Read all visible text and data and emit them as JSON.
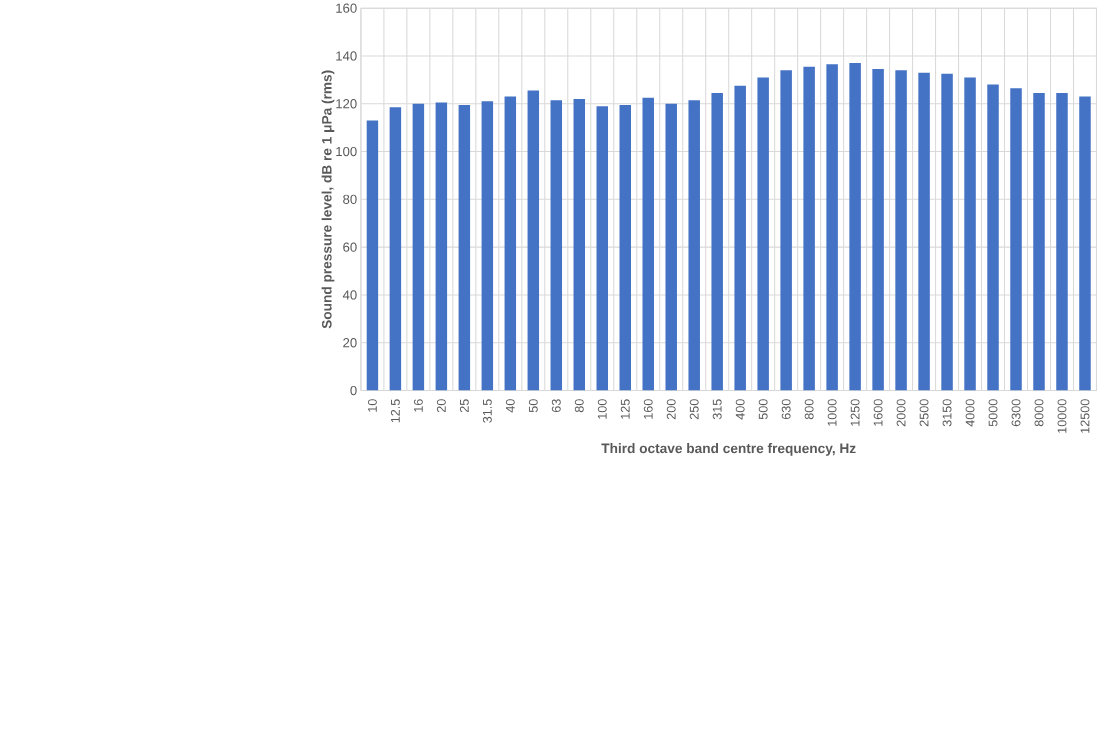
{
  "chart_data": {
    "type": "bar",
    "xlabel": "Third octave band centre frequency, Hz",
    "ylabel": "Sound pressure level, dB re 1 μPa (rms)",
    "categories": [
      "10",
      "12.5",
      "16",
      "20",
      "25",
      "31.5",
      "40",
      "50",
      "63",
      "80",
      "100",
      "125",
      "160",
      "200",
      "250",
      "315",
      "400",
      "500",
      "630",
      "800",
      "1000",
      "1250",
      "1600",
      "2000",
      "2500",
      "3150",
      "4000",
      "5000",
      "6300",
      "8000",
      "10000",
      "12500"
    ],
    "values": [
      113,
      118.5,
      120,
      120.5,
      119.5,
      121,
      123,
      125.5,
      121.5,
      122,
      119,
      119.5,
      122.5,
      120,
      121.5,
      124.5,
      127.5,
      131,
      134,
      135.5,
      136.5,
      137,
      134.5,
      134,
      133,
      132.5,
      131,
      128,
      126.5,
      124.5,
      124.5,
      123
    ],
    "color": "#4472c4",
    "ylim": [
      0,
      160
    ],
    "yticks": [
      0,
      20,
      40,
      60,
      80,
      100,
      120,
      140,
      160
    ],
    "grid": true
  }
}
